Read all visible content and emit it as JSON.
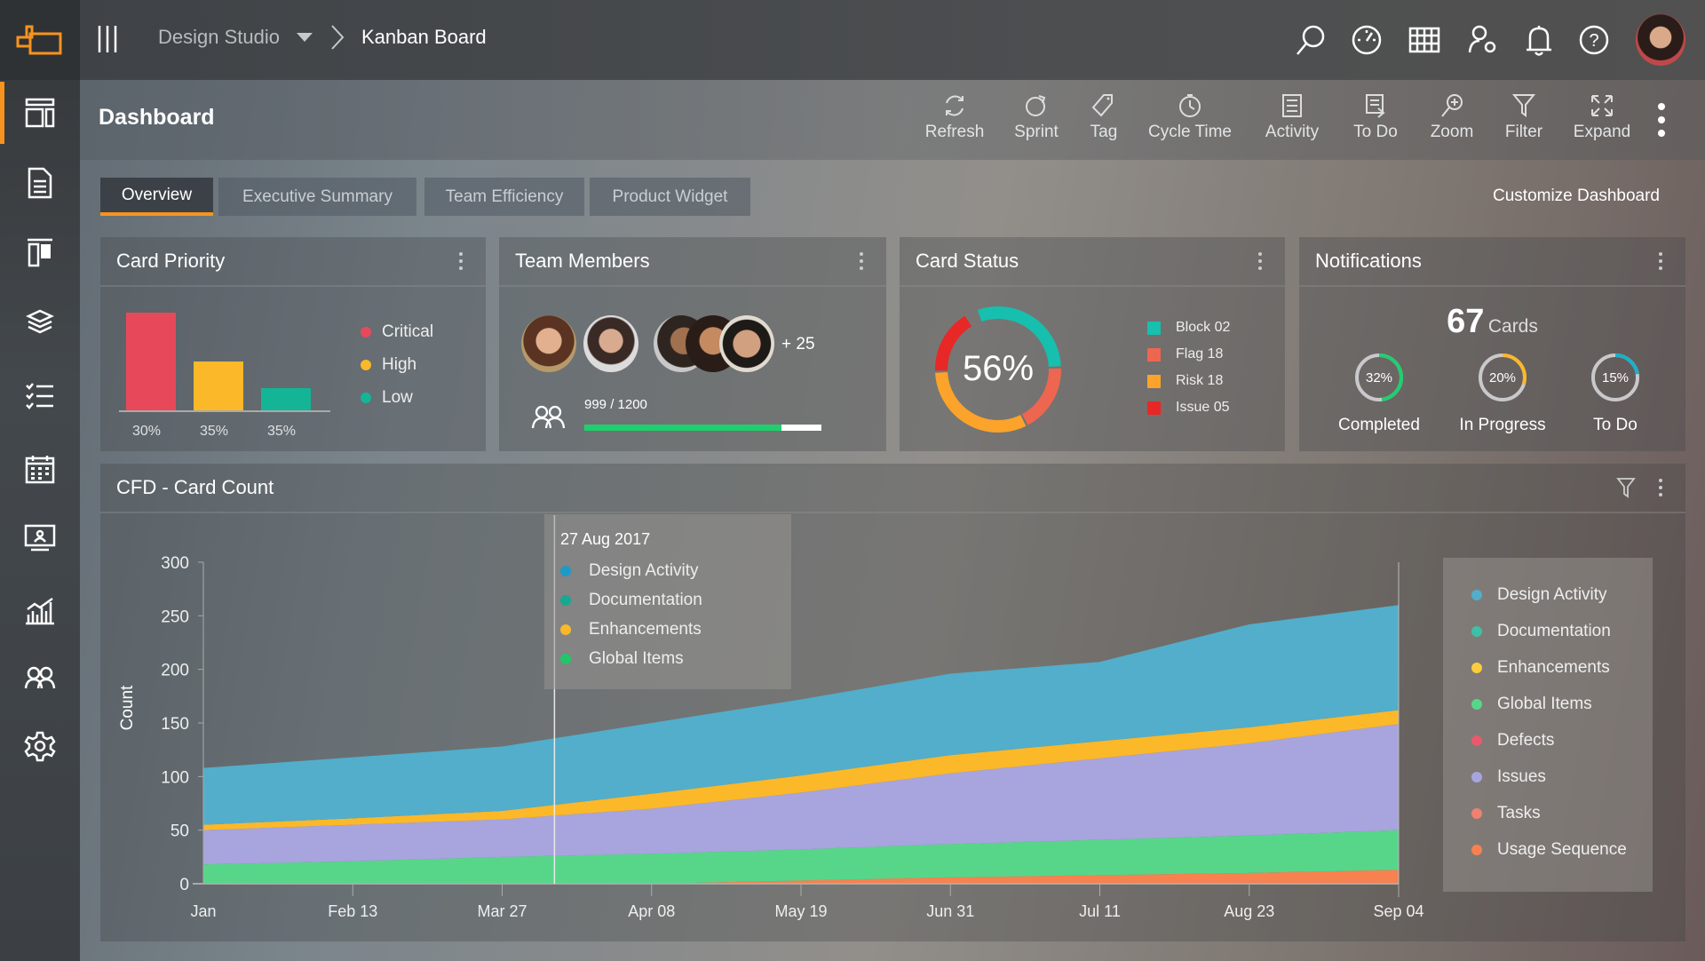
{
  "topbar": {
    "project": "Design Studio",
    "page": "Kanban Board"
  },
  "toolbar": {
    "title": "Dashboard",
    "items": [
      {
        "label": "Refresh",
        "icon": "refresh-icon"
      },
      {
        "label": "Sprint",
        "icon": "sprint-icon"
      },
      {
        "label": "Tag",
        "icon": "tag-icon"
      },
      {
        "label": "Cycle Time",
        "icon": "clock-icon"
      },
      {
        "label": "Activity",
        "icon": "activity-icon"
      },
      {
        "label": "To Do",
        "icon": "todo-icon"
      },
      {
        "label": "Zoom",
        "icon": "zoom-in-icon"
      },
      {
        "label": "Filter",
        "icon": "filter-icon"
      },
      {
        "label": "Expand",
        "icon": "expand-icon"
      }
    ]
  },
  "tabs": [
    "Overview",
    "Executive Summary",
    "Team Efficiency",
    "Product Widget"
  ],
  "customize": "Customize Dashboard",
  "card_priority": {
    "title": "Card Priority",
    "bars": [
      {
        "label": "Critical",
        "pct": "30%",
        "level": 1.0,
        "color": "#e8495a"
      },
      {
        "label": "High",
        "pct": "35%",
        "level": 0.5,
        "color": "#fbb829"
      },
      {
        "label": "Low",
        "pct": "35%",
        "level": 0.23,
        "color": "#14b597"
      }
    ]
  },
  "team_members": {
    "title": "Team Members",
    "more": "+ 25",
    "count": "999 / 1200",
    "progress": 0.8325
  },
  "card_status": {
    "title": "Card Status",
    "center": "56%",
    "legend": [
      {
        "label": "Block 02",
        "color": "#17bfae",
        "fraction": 0.3
      },
      {
        "label": "Flag 18",
        "color": "#ee6650",
        "fraction": 0.18
      },
      {
        "label": "Risk 18",
        "color": "#fba32a",
        "fraction": 0.32
      },
      {
        "label": "Issue 05",
        "color": "#e82727",
        "fraction": 0.17
      }
    ]
  },
  "notifications": {
    "title": "Notifications",
    "count": "67",
    "count_label": "Cards",
    "rings": [
      {
        "label": "Completed",
        "pct": "32%",
        "value": 0.32,
        "color": "#1fcf6e"
      },
      {
        "label": "In Progress",
        "pct": "20%",
        "value": 0.2,
        "color": "#fbb829"
      },
      {
        "label": "To Do",
        "pct": "15%",
        "value": 0.15,
        "color": "#1ab0c9"
      }
    ]
  },
  "cfd": {
    "title": "CFD - Card Count",
    "tooltip": {
      "date": "27 Aug 2017",
      "items": [
        {
          "label": "Design Activity",
          "color": "#1a9bc9"
        },
        {
          "label": "Documentation",
          "color": "#16a893"
        },
        {
          "label": "Enhancements",
          "color": "#fbb829"
        },
        {
          "label": "Global Items",
          "color": "#22c66a"
        }
      ]
    }
  },
  "chart_data": {
    "type": "area",
    "stacked": true,
    "title": "CFD - Card Count",
    "xlabel": "",
    "ylabel": "Count",
    "ylim": [
      0,
      300
    ],
    "yticks": [
      0,
      50,
      100,
      150,
      200,
      250,
      300
    ],
    "categories": [
      "Jan",
      "Feb 13",
      "Mar 27",
      "Apr 08",
      "May 19",
      "Jun 31",
      "Jul 11",
      "Aug 23",
      "Sep 04"
    ],
    "cursor_index": 2.35,
    "legend_position": "right",
    "series": [
      {
        "name": "Usage Sequence",
        "color": "#f7824f",
        "values": [
          0,
          0,
          0,
          0,
          3,
          6,
          8,
          10,
          13
        ]
      },
      {
        "name": "Tasks",
        "color": "#f08070",
        "values": [
          0,
          0,
          0,
          0,
          0,
          0,
          0,
          0,
          0
        ]
      },
      {
        "name": "Global Items",
        "color": "#57d68a",
        "values": [
          18,
          21,
          25,
          28,
          29,
          31,
          33,
          35,
          37
        ]
      },
      {
        "name": "Issues",
        "color": "#a8a4de",
        "values": [
          32,
          34,
          35,
          42,
          53,
          66,
          76,
          86,
          99
        ]
      },
      {
        "name": "Defects",
        "color": "#e85a6e",
        "values": [
          0,
          0,
          0,
          0,
          0,
          0,
          0,
          0,
          0
        ]
      },
      {
        "name": "Enhancements",
        "color": "#fbb829",
        "values": [
          5,
          6,
          8,
          14,
          16,
          17,
          16,
          15,
          13
        ]
      },
      {
        "name": "Documentation",
        "color": "#3fbfa5",
        "values": [
          0,
          0,
          0,
          0,
          0,
          0,
          0,
          0,
          0
        ]
      },
      {
        "name": "Design Activity",
        "color": "#52aecb",
        "values": [
          53,
          57,
          60,
          66,
          71,
          76,
          74,
          96,
          98
        ]
      }
    ],
    "legend": [
      {
        "label": "Design Activity",
        "color": "#52aecb"
      },
      {
        "label": "Documentation",
        "color": "#3fbfa5"
      },
      {
        "label": "Enhancements",
        "color": "#fbcd3c"
      },
      {
        "label": "Global Items",
        "color": "#57d68a"
      },
      {
        "label": "Defects",
        "color": "#e85a6e"
      },
      {
        "label": "Issues",
        "color": "#a8a4de"
      },
      {
        "label": "Tasks",
        "color": "#f08070"
      },
      {
        "label": "Usage Sequence",
        "color": "#f7824f"
      }
    ]
  }
}
